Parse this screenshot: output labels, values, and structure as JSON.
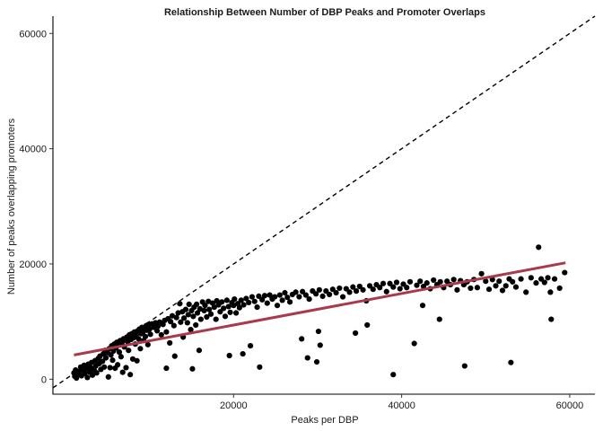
{
  "chart_data": {
    "type": "scatter",
    "title": "Relationship Between Number of DBP Peaks and Promoter Overlaps",
    "xlabel": "Peaks per DBP",
    "ylabel": "Number of peaks overlapping promoters",
    "xlim": [
      -1500,
      63000
    ],
    "ylim": [
      -2600,
      63000
    ],
    "x_ticks": [
      20000,
      40000,
      60000
    ],
    "x_tick_labels": [
      "20000",
      "40000",
      "60000"
    ],
    "y_ticks": [
      0,
      20000,
      40000,
      60000
    ],
    "y_tick_labels": [
      "0",
      "20000",
      "40000",
      "60000"
    ],
    "grid": false,
    "legend": "none",
    "point_color": "#000000",
    "reference_line": {
      "type": "identity",
      "style": "dashed",
      "color": "#000000",
      "slope": 1,
      "intercept": 0
    },
    "fit_line": {
      "type": "linear",
      "color": "#a83a4b",
      "x": [
        1000,
        59500
      ],
      "y": [
        4200,
        20200
      ]
    },
    "points": [
      [
        1000,
        1100
      ],
      [
        1100,
        500
      ],
      [
        1200,
        1600
      ],
      [
        1300,
        200
      ],
      [
        1500,
        900
      ],
      [
        1600,
        1300
      ],
      [
        1800,
        2100
      ],
      [
        1900,
        600
      ],
      [
        2100,
        1500
      ],
      [
        2200,
        2400
      ],
      [
        2300,
        1000
      ],
      [
        2500,
        1800
      ],
      [
        2600,
        300
      ],
      [
        2700,
        2600
      ],
      [
        2900,
        1200
      ],
      [
        3000,
        2000
      ],
      [
        3100,
        2900
      ],
      [
        3200,
        700
      ],
      [
        3400,
        1600
      ],
      [
        3500,
        3200
      ],
      [
        3600,
        2300
      ],
      [
        3700,
        1100
      ],
      [
        3900,
        3600
      ],
      [
        4000,
        2700
      ],
      [
        4100,
        4000
      ],
      [
        4200,
        1700
      ],
      [
        4400,
        3100
      ],
      [
        4500,
        4400
      ],
      [
        4600,
        2100
      ],
      [
        4700,
        5000
      ],
      [
        4800,
        3700
      ],
      [
        5000,
        4600
      ],
      [
        5100,
        400
      ],
      [
        5200,
        5300
      ],
      [
        5300,
        2000
      ],
      [
        5400,
        4200
      ],
      [
        5500,
        5800
      ],
      [
        5600,
        3300
      ],
      [
        5700,
        4900
      ],
      [
        5800,
        6100
      ],
      [
        5900,
        1900
      ],
      [
        6000,
        5400
      ],
      [
        6100,
        6400
      ],
      [
        6200,
        2500
      ],
      [
        6300,
        5900
      ],
      [
        6400,
        4700
      ],
      [
        6500,
        6700
      ],
      [
        6600,
        3900
      ],
      [
        6700,
        6200
      ],
      [
        6800,
        1200
      ],
      [
        6900,
        7000
      ],
      [
        7000,
        5600
      ],
      [
        7100,
        6800
      ],
      [
        7200,
        2000
      ],
      [
        7300,
        7300
      ],
      [
        7400,
        6500
      ],
      [
        7500,
        5000
      ],
      [
        7600,
        7700
      ],
      [
        7700,
        800
      ],
      [
        7800,
        6900
      ],
      [
        7900,
        7900
      ],
      [
        8000,
        3500
      ],
      [
        8100,
        7200
      ],
      [
        8200,
        8200
      ],
      [
        8300,
        6100
      ],
      [
        8400,
        7600
      ],
      [
        8500,
        3200
      ],
      [
        8600,
        8400
      ],
      [
        8700,
        7000
      ],
      [
        8800,
        8700
      ],
      [
        8900,
        5300
      ],
      [
        9000,
        7900
      ],
      [
        9100,
        9000
      ],
      [
        9200,
        8100
      ],
      [
        9300,
        6700
      ],
      [
        9400,
        8900
      ],
      [
        9500,
        7400
      ],
      [
        9600,
        9300
      ],
      [
        9700,
        8500
      ],
      [
        9800,
        6000
      ],
      [
        9900,
        9500
      ],
      [
        10000,
        8700
      ],
      [
        10100,
        7800
      ],
      [
        10300,
        9600
      ],
      [
        10500,
        9000
      ],
      [
        10700,
        9800
      ],
      [
        10900,
        8400
      ],
      [
        11000,
        9200
      ],
      [
        11200,
        9900
      ],
      [
        11400,
        7700
      ],
      [
        11600,
        9500
      ],
      [
        11800,
        10200
      ],
      [
        12000,
        8200
      ],
      [
        12000,
        1900
      ],
      [
        12200,
        10500
      ],
      [
        12400,
        6300
      ],
      [
        12500,
        10000
      ],
      [
        12700,
        11000
      ],
      [
        12900,
        9300
      ],
      [
        13000,
        4000
      ],
      [
        13200,
        10700
      ],
      [
        13400,
        11500
      ],
      [
        13600,
        13100
      ],
      [
        13700,
        9900
      ],
      [
        13900,
        11700
      ],
      [
        14000,
        7300
      ],
      [
        14100,
        10600
      ],
      [
        14300,
        12100
      ],
      [
        14500,
        9800
      ],
      [
        14600,
        11200
      ],
      [
        14700,
        13000
      ],
      [
        14900,
        8600
      ],
      [
        15000,
        11900
      ],
      [
        15100,
        1800
      ],
      [
        15200,
        10900
      ],
      [
        15300,
        12500
      ],
      [
        15500,
        9400
      ],
      [
        15600,
        13000
      ],
      [
        15700,
        11500
      ],
      [
        15900,
        5000
      ],
      [
        16000,
        12200
      ],
      [
        16100,
        10400
      ],
      [
        16300,
        13400
      ],
      [
        16500,
        11900
      ],
      [
        16600,
        12800
      ],
      [
        16800,
        10800
      ],
      [
        17000,
        13500
      ],
      [
        17100,
        12100
      ],
      [
        17300,
        11300
      ],
      [
        17500,
        13200
      ],
      [
        17700,
        12500
      ],
      [
        17900,
        10400
      ],
      [
        18000,
        13600
      ],
      [
        18200,
        12900
      ],
      [
        18400,
        11700
      ],
      [
        18600,
        13400
      ],
      [
        18800,
        12300
      ],
      [
        19000,
        10900
      ],
      [
        19200,
        13700
      ],
      [
        19400,
        12600
      ],
      [
        19500,
        4100
      ],
      [
        19600,
        11600
      ],
      [
        19800,
        13300
      ],
      [
        20000,
        12800
      ],
      [
        20100,
        13900
      ],
      [
        20300,
        11500
      ],
      [
        20500,
        13100
      ],
      [
        20700,
        12400
      ],
      [
        20900,
        13700
      ],
      [
        21100,
        4400
      ],
      [
        21200,
        12900
      ],
      [
        21500,
        14000
      ],
      [
        21800,
        13300
      ],
      [
        22000,
        5800
      ],
      [
        22200,
        14300
      ],
      [
        22500,
        13500
      ],
      [
        22800,
        12500
      ],
      [
        23000,
        14400
      ],
      [
        23100,
        2100
      ],
      [
        23400,
        13800
      ],
      [
        23700,
        14500
      ],
      [
        24000,
        13200
      ],
      [
        24300,
        14600
      ],
      [
        24600,
        13900
      ],
      [
        24900,
        14300
      ],
      [
        25200,
        12800
      ],
      [
        25500,
        14600
      ],
      [
        25800,
        13700
      ],
      [
        26100,
        15000
      ],
      [
        26400,
        14200
      ],
      [
        26700,
        13400
      ],
      [
        27000,
        14700
      ],
      [
        27400,
        15100
      ],
      [
        27800,
        14300
      ],
      [
        28100,
        7000
      ],
      [
        28200,
        15200
      ],
      [
        28600,
        14600
      ],
      [
        28800,
        3700
      ],
      [
        29000,
        13900
      ],
      [
        29400,
        15300
      ],
      [
        29800,
        14800
      ],
      [
        29900,
        3000
      ],
      [
        30100,
        8300
      ],
      [
        30200,
        15500
      ],
      [
        30300,
        5900
      ],
      [
        30600,
        14400
      ],
      [
        31000,
        15300
      ],
      [
        31400,
        14700
      ],
      [
        31800,
        15600
      ],
      [
        32200,
        15000
      ],
      [
        32600,
        15800
      ],
      [
        33000,
        14300
      ],
      [
        33400,
        15700
      ],
      [
        33800,
        15100
      ],
      [
        34200,
        16000
      ],
      [
        34500,
        8000
      ],
      [
        34600,
        15300
      ],
      [
        35000,
        16100
      ],
      [
        35400,
        15500
      ],
      [
        35800,
        13600
      ],
      [
        35900,
        9400
      ],
      [
        36200,
        16200
      ],
      [
        36600,
        15600
      ],
      [
        37000,
        16400
      ],
      [
        37400,
        15900
      ],
      [
        37800,
        16600
      ],
      [
        38200,
        15200
      ],
      [
        38600,
        16600
      ],
      [
        39000,
        800
      ],
      [
        39000,
        16000
      ],
      [
        39400,
        16800
      ],
      [
        39800,
        15700
      ],
      [
        40200,
        16500
      ],
      [
        40600,
        15900
      ],
      [
        41000,
        16900
      ],
      [
        41500,
        6200
      ],
      [
        41800,
        16300
      ],
      [
        42200,
        17000
      ],
      [
        42500,
        12800
      ],
      [
        42600,
        16100
      ],
      [
        43000,
        16700
      ],
      [
        43400,
        15700
      ],
      [
        43800,
        17200
      ],
      [
        44200,
        16400
      ],
      [
        44500,
        10400
      ],
      [
        44600,
        16900
      ],
      [
        45000,
        15900
      ],
      [
        45400,
        17000
      ],
      [
        45800,
        16400
      ],
      [
        46200,
        17300
      ],
      [
        46600,
        15500
      ],
      [
        47000,
        17100
      ],
      [
        47400,
        16400
      ],
      [
        47500,
        2300
      ],
      [
        47800,
        16900
      ],
      [
        48200,
        15800
      ],
      [
        48600,
        17300
      ],
      [
        49000,
        15900
      ],
      [
        49500,
        18300
      ],
      [
        50000,
        17000
      ],
      [
        50400,
        15600
      ],
      [
        50800,
        17300
      ],
      [
        51200,
        16200
      ],
      [
        51600,
        17000
      ],
      [
        52000,
        15400
      ],
      [
        52400,
        16200
      ],
      [
        52800,
        17400
      ],
      [
        53000,
        2900
      ],
      [
        53200,
        16900
      ],
      [
        53600,
        16000
      ],
      [
        54200,
        17400
      ],
      [
        54800,
        15100
      ],
      [
        55400,
        17600
      ],
      [
        56000,
        16700
      ],
      [
        56300,
        22900
      ],
      [
        56600,
        17400
      ],
      [
        57000,
        16800
      ],
      [
        57400,
        17600
      ],
      [
        57700,
        15100
      ],
      [
        57800,
        10400
      ],
      [
        58200,
        17400
      ],
      [
        58800,
        15800
      ],
      [
        59400,
        18500
      ]
    ]
  }
}
